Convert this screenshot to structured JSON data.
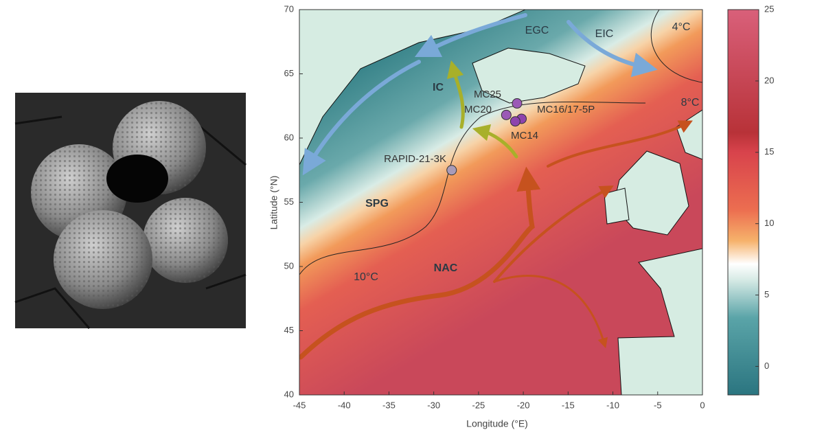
{
  "map": {
    "xlabel": "Longitude (°E)",
    "ylabel": "Latitude (°N)",
    "xlim": [
      -45,
      0
    ],
    "xticks": [
      -45,
      -40,
      -35,
      -30,
      -25,
      -20,
      -15,
      -10,
      -5,
      0
    ],
    "ylim": [
      40,
      70
    ],
    "yticks": [
      40,
      45,
      50,
      55,
      60,
      65,
      70
    ],
    "annotations": [
      "EGC",
      "EIC",
      "4°C",
      "IC",
      "8°C",
      "SPG",
      "NAC",
      "10°C"
    ],
    "sites": [
      {
        "name": "MC25",
        "lon": -20.7,
        "lat": 62.7,
        "color": "#9b59b6"
      },
      {
        "name": "MC20",
        "lon": -21.9,
        "lat": 61.8,
        "color": "#9b59b6"
      },
      {
        "name": "MC16/17-5P",
        "lon": -20.2,
        "lat": 61.5,
        "color": "#8e44ad"
      },
      {
        "name": "MC14",
        "lon": -20.9,
        "lat": 61.3,
        "color": "#8e44ad"
      },
      {
        "name": "RAPID-21-3K",
        "lon": -28,
        "lat": 57.5,
        "color": "#a99bb8"
      }
    ],
    "colorbar": {
      "lim": [
        -2,
        25
      ],
      "ticks": [
        0,
        5,
        10,
        15,
        20,
        25
      ]
    }
  }
}
